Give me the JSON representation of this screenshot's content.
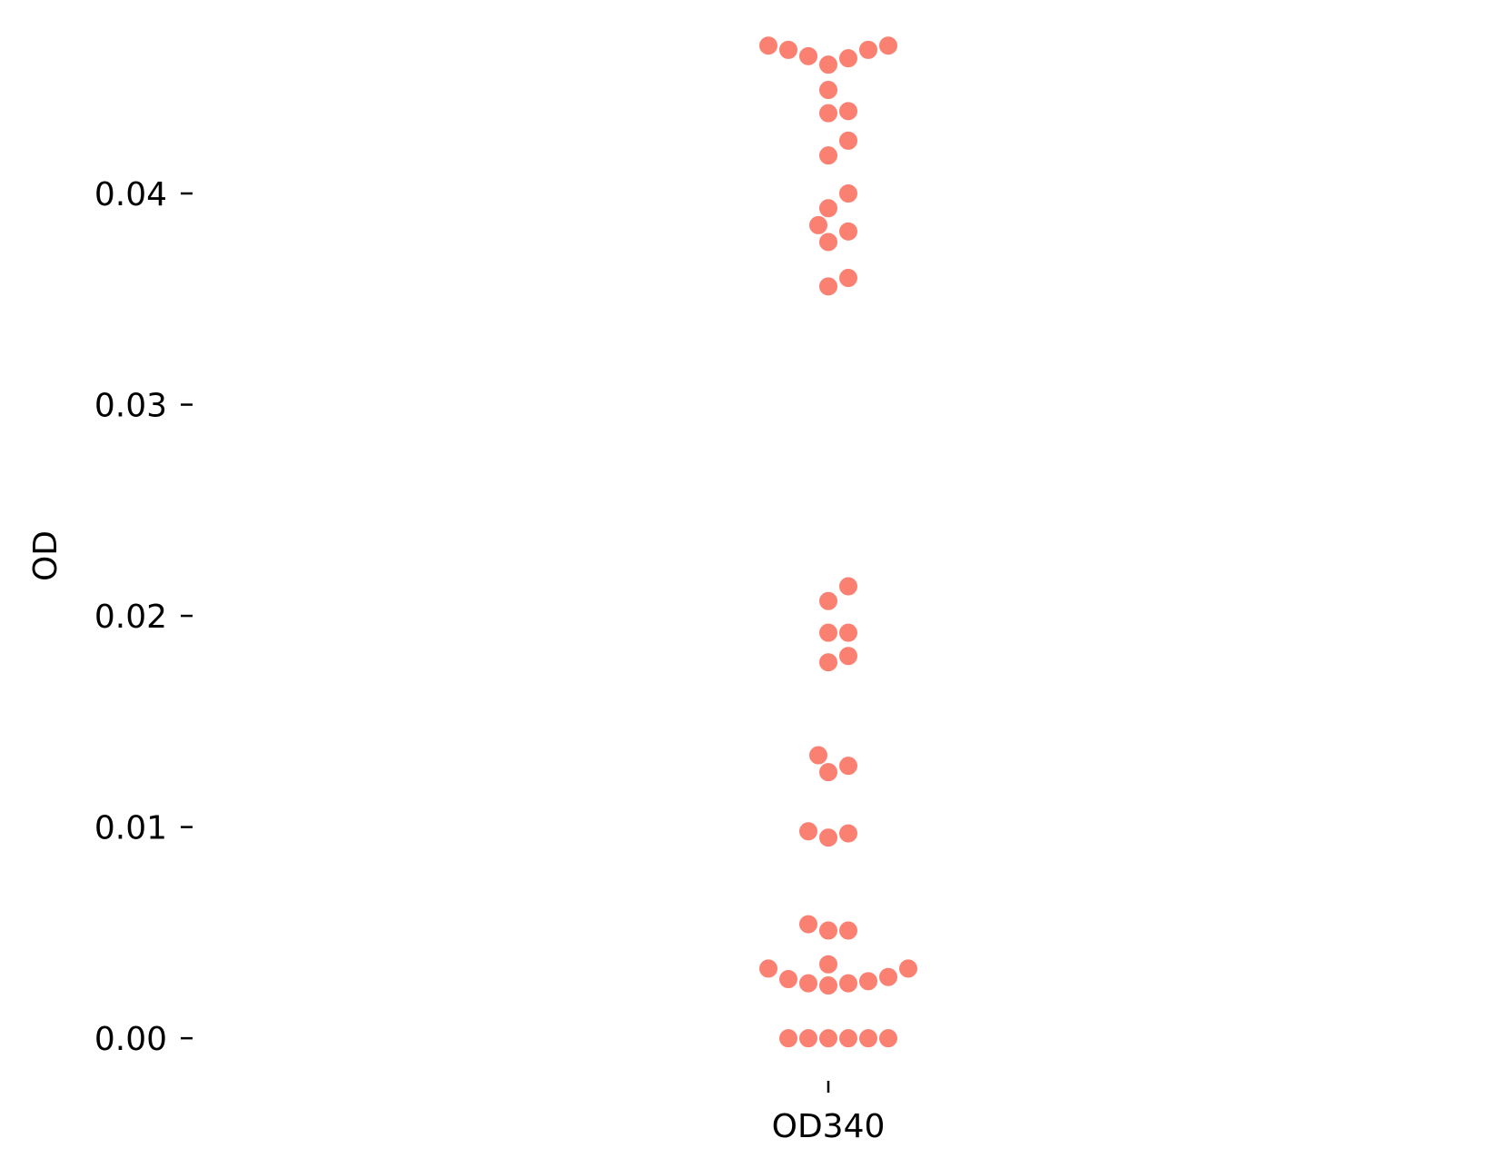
{
  "chart_data": {
    "type": "scatter",
    "subtype": "swarm",
    "title": "",
    "xlabel": "",
    "ylabel": "OD",
    "categories": [
      "OD340"
    ],
    "ylim": [
      -0.0018,
      0.0483
    ],
    "yticks": [
      0.0,
      0.01,
      0.02,
      0.03,
      0.04
    ],
    "ytick_labels": [
      "0.00",
      "0.01",
      "0.02",
      "0.03",
      "0.04"
    ],
    "grid": false,
    "frame": false,
    "point_color": "#fa8072",
    "series": [
      {
        "category": "OD340",
        "values": [
          0.0,
          0.0,
          0.0,
          0.0,
          0.0,
          0.0,
          0.0025,
          0.0026,
          0.0026,
          0.0027,
          0.0028,
          0.0029,
          0.0033,
          0.0033,
          0.0035,
          0.0051,
          0.0051,
          0.0054,
          0.0095,
          0.0097,
          0.0098,
          0.0126,
          0.0129,
          0.0134,
          0.0178,
          0.0181,
          0.0192,
          0.0192,
          0.0207,
          0.0214,
          0.0356,
          0.036,
          0.0377,
          0.0382,
          0.0385,
          0.0393,
          0.04,
          0.0418,
          0.0425,
          0.0438,
          0.0439,
          0.0449,
          0.0461,
          0.0464,
          0.0465,
          0.0468,
          0.0468,
          0.047,
          0.047
        ]
      }
    ]
  }
}
